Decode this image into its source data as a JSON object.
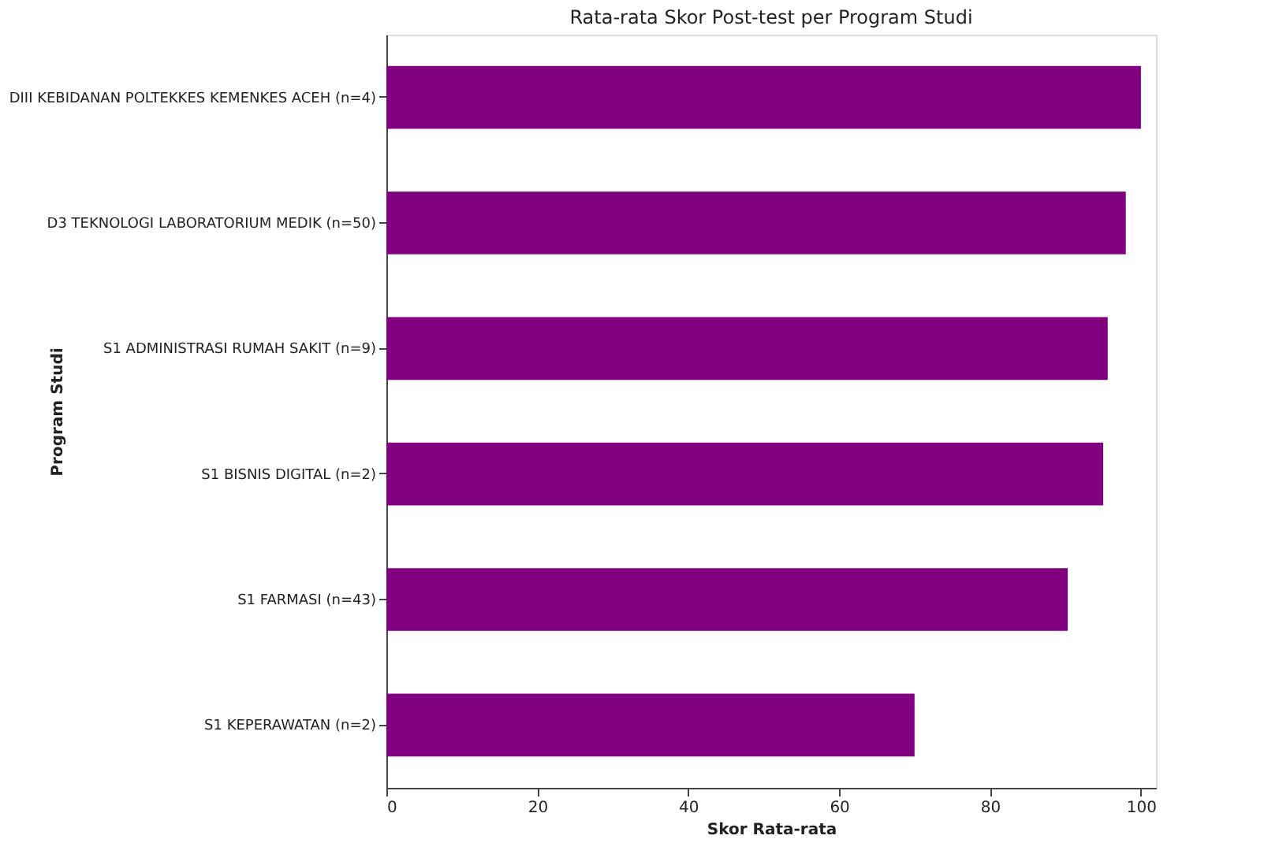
{
  "chart_data": {
    "type": "bar",
    "orientation": "horizontal",
    "title": "Rata-rata Skor Post-test per Program Studi",
    "xlabel": "Skor Rata-rata",
    "ylabel": "Program Studi",
    "categories": [
      "DIII KEBIDANAN POLTEKKES KEMENKES ACEH (n=4)",
      "D3 TEKNOLOGI LABORATORIUM MEDIK (n=50)",
      "S1 ADMINISTRASI RUMAH SAKIT (n=9)",
      "S1 BISNIS DIGITAL (n=2)",
      "S1 FARMASI (n=43)",
      "S1 KEPERAWATAN (n=2)"
    ],
    "values": [
      100,
      98,
      95.6,
      95,
      90.3,
      70
    ],
    "color": "#800080",
    "xlim": [
      0,
      102
    ],
    "xticks": [
      0,
      20,
      40,
      60,
      80,
      100
    ],
    "grid": false
  }
}
